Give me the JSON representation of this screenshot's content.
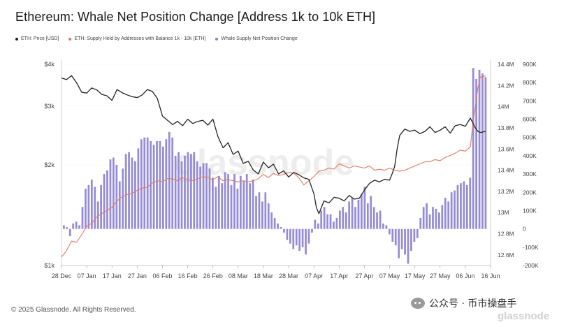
{
  "chart_data": {
    "type": "bar+line",
    "title": "Ethereum: Whale Net Position Change [Address 1k to 10k ETH]",
    "legend": [
      {
        "name": "ETH: Price [USD]",
        "color": "#222222"
      },
      {
        "name": "ETH: Supply Held by Addresses with Balance 1k - 10k [ETH]",
        "color": "#e07a5f"
      },
      {
        "name": "Whale Supply Net Position Change",
        "color": "#8a7fd0"
      }
    ],
    "x_ticks": [
      "28 Dec",
      "07 Jan",
      "17 Jan",
      "27 Jan",
      "06 Feb",
      "16 Feb",
      "26 Feb",
      "08 Mar",
      "18 Mar",
      "28 Mar",
      "07 Apr",
      "17 Apr",
      "27 Apr",
      "07 May",
      "17 May",
      "27 May",
      "06 Jun",
      "16 Jun"
    ],
    "y_left_ticks": [
      {
        "label": "$4k",
        "value": 4000
      },
      {
        "label": "$3k",
        "value": 3000
      },
      {
        "label": "$2k",
        "value": 2000
      },
      {
        "label": "$1k",
        "value": 1000
      }
    ],
    "y_left_range": [
      1000,
      4000
    ],
    "y_left_scale": "log",
    "y_mid_ticks": [
      "14.4M",
      "14.2M",
      "14M",
      "13.8M",
      "13.6M",
      "13.4M",
      "13.2M",
      "13M",
      "12.8M",
      "12.6M"
    ],
    "y_mid_range": [
      12500000,
      14400000
    ],
    "y_right_ticks": [
      "900K",
      "800K",
      "700K",
      "600K",
      "500K",
      "400K",
      "300K",
      "200K",
      "100K",
      "0",
      "-100K",
      "-200K"
    ],
    "y_right_range": [
      -200000,
      900000
    ],
    "series": [
      {
        "name": "ETH: Price [USD]",
        "type": "line",
        "color": "#222222",
        "points": [
          [
            0,
            3640
          ],
          [
            2,
            3600
          ],
          [
            4,
            3700
          ],
          [
            6,
            3520
          ],
          [
            8,
            3300
          ],
          [
            10,
            3280
          ],
          [
            12,
            3400
          ],
          [
            14,
            3350
          ],
          [
            16,
            3250
          ],
          [
            18,
            3220
          ],
          [
            20,
            3120
          ],
          [
            22,
            3360
          ],
          [
            24,
            3290
          ],
          [
            26,
            3240
          ],
          [
            28,
            3200
          ],
          [
            30,
            3180
          ],
          [
            32,
            3240
          ],
          [
            34,
            3360
          ],
          [
            36,
            3320
          ],
          [
            38,
            3160
          ],
          [
            40,
            2800
          ],
          [
            42,
            2720
          ],
          [
            44,
            2640
          ],
          [
            46,
            2700
          ],
          [
            48,
            2620
          ],
          [
            50,
            2740
          ],
          [
            52,
            2660
          ],
          [
            54,
            2700
          ],
          [
            56,
            2720
          ],
          [
            58,
            2630
          ],
          [
            60,
            2740
          ],
          [
            62,
            2430
          ],
          [
            64,
            2250
          ],
          [
            66,
            2330
          ],
          [
            68,
            2150
          ],
          [
            70,
            2200
          ],
          [
            72,
            2020
          ],
          [
            74,
            2050
          ],
          [
            76,
            1930
          ],
          [
            78,
            1880
          ],
          [
            80,
            2040
          ],
          [
            82,
            1960
          ],
          [
            84,
            2010
          ],
          [
            86,
            1880
          ],
          [
            88,
            1920
          ],
          [
            90,
            1840
          ],
          [
            92,
            1900
          ],
          [
            94,
            1870
          ],
          [
            96,
            1830
          ],
          [
            98,
            1810
          ],
          [
            100,
            1640
          ],
          [
            101,
            1490
          ],
          [
            102,
            1430
          ],
          [
            104,
            1560
          ],
          [
            106,
            1540
          ],
          [
            108,
            1600
          ],
          [
            110,
            1590
          ],
          [
            112,
            1560
          ],
          [
            114,
            1620
          ],
          [
            116,
            1580
          ],
          [
            118,
            1590
          ],
          [
            120,
            1680
          ],
          [
            122,
            1760
          ],
          [
            124,
            1800
          ],
          [
            126,
            1780
          ],
          [
            128,
            1810
          ],
          [
            130,
            1800
          ],
          [
            131,
            1880
          ],
          [
            132,
            1980
          ],
          [
            133,
            2240
          ],
          [
            134,
            2450
          ],
          [
            136,
            2560
          ],
          [
            138,
            2520
          ],
          [
            140,
            2540
          ],
          [
            142,
            2480
          ],
          [
            144,
            2520
          ],
          [
            146,
            2600
          ],
          [
            148,
            2500
          ],
          [
            150,
            2540
          ],
          [
            152,
            2600
          ],
          [
            154,
            2490
          ],
          [
            156,
            2620
          ],
          [
            158,
            2640
          ],
          [
            160,
            2610
          ],
          [
            162,
            2760
          ],
          [
            164,
            2580
          ],
          [
            165,
            2520
          ],
          [
            166,
            2500
          ],
          [
            168,
            2520
          ]
        ]
      },
      {
        "name": "ETH: Supply Held by Addresses with Balance 1k - 10k [ETH]",
        "type": "line",
        "color": "#e07a5f",
        "points": [
          [
            0,
            12580000
          ],
          [
            2,
            12640000
          ],
          [
            4,
            12730000
          ],
          [
            6,
            12720000
          ],
          [
            8,
            12790000
          ],
          [
            10,
            12870000
          ],
          [
            12,
            12900000
          ],
          [
            14,
            12960000
          ],
          [
            16,
            12990000
          ],
          [
            18,
            13020000
          ],
          [
            20,
            13050000
          ],
          [
            22,
            13110000
          ],
          [
            24,
            13150000
          ],
          [
            26,
            13170000
          ],
          [
            28,
            13180000
          ],
          [
            30,
            13210000
          ],
          [
            32,
            13230000
          ],
          [
            34,
            13240000
          ],
          [
            36,
            13280000
          ],
          [
            38,
            13300000
          ],
          [
            40,
            13290000
          ],
          [
            42,
            13320000
          ],
          [
            44,
            13320000
          ],
          [
            46,
            13300000
          ],
          [
            48,
            13330000
          ],
          [
            50,
            13310000
          ],
          [
            52,
            13300000
          ],
          [
            54,
            13320000
          ],
          [
            56,
            13340000
          ],
          [
            58,
            13330000
          ],
          [
            60,
            13310000
          ],
          [
            62,
            13340000
          ],
          [
            64,
            13300000
          ],
          [
            66,
            13310000
          ],
          [
            68,
            13300000
          ],
          [
            70,
            13290000
          ],
          [
            72,
            13300000
          ],
          [
            74,
            13290000
          ],
          [
            76,
            13300000
          ],
          [
            78,
            13320000
          ],
          [
            80,
            13360000
          ],
          [
            82,
            13330000
          ],
          [
            84,
            13370000
          ],
          [
            86,
            13350000
          ],
          [
            88,
            13360000
          ],
          [
            90,
            13380000
          ],
          [
            92,
            13370000
          ],
          [
            94,
            13330000
          ],
          [
            96,
            13260000
          ],
          [
            98,
            13300000
          ],
          [
            100,
            13340000
          ],
          [
            102,
            13390000
          ],
          [
            104,
            13400000
          ],
          [
            106,
            13420000
          ],
          [
            108,
            13410000
          ],
          [
            110,
            13460000
          ],
          [
            112,
            13440000
          ],
          [
            114,
            13420000
          ],
          [
            116,
            13440000
          ],
          [
            118,
            13430000
          ],
          [
            120,
            13420000
          ],
          [
            122,
            13440000
          ],
          [
            124,
            13400000
          ],
          [
            126,
            13410000
          ],
          [
            128,
            13400000
          ],
          [
            130,
            13420000
          ],
          [
            132,
            13400000
          ],
          [
            134,
            13390000
          ],
          [
            136,
            13400000
          ],
          [
            138,
            13420000
          ],
          [
            140,
            13440000
          ],
          [
            142,
            13460000
          ],
          [
            144,
            13480000
          ],
          [
            146,
            13480000
          ],
          [
            148,
            13500000
          ],
          [
            150,
            13490000
          ],
          [
            152,
            13520000
          ],
          [
            154,
            13540000
          ],
          [
            156,
            13560000
          ],
          [
            158,
            13590000
          ],
          [
            160,
            13580000
          ],
          [
            162,
            13620000
          ],
          [
            163,
            13840000
          ],
          [
            164,
            14000000
          ],
          [
            165,
            14180000
          ],
          [
            166,
            14280000
          ],
          [
            168,
            14290000
          ]
        ]
      },
      {
        "name": "Whale Supply Net Position Change",
        "type": "bar",
        "color": "#8a7fd0",
        "values": [
          20000,
          10000,
          -40000,
          30000,
          40000,
          20000,
          120000,
          220000,
          240000,
          270000,
          230000,
          150000,
          240000,
          300000,
          320000,
          380000,
          390000,
          350000,
          260000,
          330000,
          410000,
          420000,
          390000,
          370000,
          440000,
          490000,
          500000,
          500000,
          480000,
          460000,
          480000,
          480000,
          450000,
          490000,
          530000,
          500000,
          400000,
          420000,
          370000,
          400000,
          420000,
          410000,
          420000,
          370000,
          340000,
          360000,
          360000,
          330000,
          280000,
          230000,
          290000,
          250000,
          310000,
          300000,
          240000,
          300000,
          220000,
          290000,
          260000,
          300000,
          250000,
          270000,
          180000,
          200000,
          150000,
          200000,
          140000,
          90000,
          60000,
          30000,
          10000,
          -20000,
          -60000,
          -80000,
          -110000,
          -90000,
          -120000,
          -100000,
          -140000,
          -80000,
          -20000,
          50000,
          30000,
          100000,
          120000,
          80000,
          80000,
          40000,
          60000,
          100000,
          120000,
          90000,
          150000,
          170000,
          120000,
          160000,
          190000,
          230000,
          140000,
          180000,
          120000,
          90000,
          100000,
          30000,
          20000,
          -30000,
          -70000,
          -90000,
          -160000,
          -110000,
          -140000,
          -190000,
          -120000,
          -70000,
          -50000,
          60000,
          120000,
          140000,
          80000,
          120000,
          110000,
          90000,
          130000,
          170000,
          150000,
          200000,
          210000,
          240000,
          250000,
          260000,
          240000,
          280000,
          880000,
          820000,
          870000,
          850000,
          830000
        ]
      }
    ]
  },
  "footer": {
    "copyright": "© 2025 Glassnode. All Rights Reserved.",
    "wechat_label": "公众号 · 币市操盘手",
    "watermark": "glassnode"
  }
}
